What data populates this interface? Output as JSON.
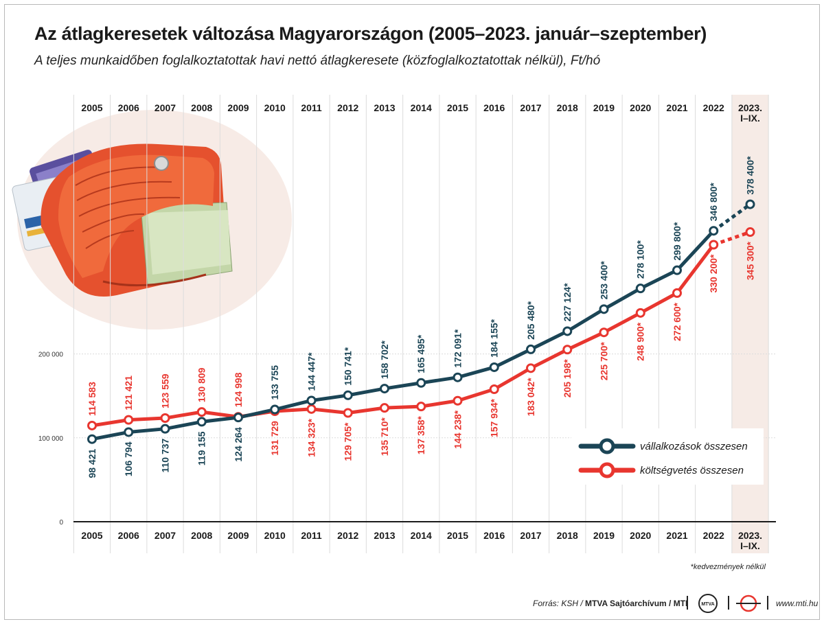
{
  "title": "Az átlagkeresetek változása Magyarországon (2005–2023. január–szeptember)",
  "subtitle": "A teljes munkaidőben foglalkoztatottak havi nettó átlagkeresete (közfoglalkoztatottak nélkül), Ft/hó",
  "footnote": "*kedvezmények nélkül",
  "footer": {
    "source_prefix": "Forrás: KSH / ",
    "source_bold": "MTVA Sajtóarchívum / MTI",
    "url": "www.mti.hu",
    "logo_text": "MTVA"
  },
  "colors": {
    "vallalkozasok": "#1b4556",
    "koltsegvetes": "#e8362f",
    "highlight_band": "#f6ebe6",
    "grid": "#dcdcdc"
  },
  "chart_data": {
    "type": "line",
    "title": "Az átlagkeresetek változása Magyarországon (2005–2023. január–szeptember)",
    "ylim": [
      0,
      400000
    ],
    "yticks": [
      {
        "value": 0,
        "label": "0"
      },
      {
        "value": 100000,
        "label": "100 000"
      },
      {
        "value": 200000,
        "label": "200 000"
      }
    ],
    "categories": [
      {
        "line1": "2005",
        "line2": ""
      },
      {
        "line1": "2006",
        "line2": ""
      },
      {
        "line1": "2007",
        "line2": ""
      },
      {
        "line1": "2008",
        "line2": ""
      },
      {
        "line1": "2009",
        "line2": ""
      },
      {
        "line1": "2010",
        "line2": ""
      },
      {
        "line1": "2011",
        "line2": ""
      },
      {
        "line1": "2012",
        "line2": ""
      },
      {
        "line1": "2013",
        "line2": ""
      },
      {
        "line1": "2014",
        "line2": ""
      },
      {
        "line1": "2015",
        "line2": ""
      },
      {
        "line1": "2016",
        "line2": ""
      },
      {
        "line1": "2017",
        "line2": ""
      },
      {
        "line1": "2018",
        "line2": ""
      },
      {
        "line1": "2019",
        "line2": ""
      },
      {
        "line1": "2020",
        "line2": ""
      },
      {
        "line1": "2021",
        "line2": ""
      },
      {
        "line1": "2022",
        "line2": ""
      },
      {
        "line1": "2023.",
        "line2": "I–IX."
      }
    ],
    "highlight_last_category": true,
    "dashed_last_segment": true,
    "grid": true,
    "legend_position": "bottom-right",
    "series": [
      {
        "name": "vállalkozások összesen",
        "key": "vallalkozasok",
        "values": [
          98421,
          106794,
          110737,
          119155,
          124264,
          133755,
          144447,
          150741,
          158702,
          165495,
          172091,
          184155,
          205480,
          227124,
          253400,
          278100,
          299800,
          346800,
          378400
        ],
        "labels": [
          "98 421",
          "106 794",
          "110 737",
          "119 155",
          "124 264",
          "133 755",
          "144 447*",
          "150 741*",
          "158 702*",
          "165 495*",
          "172 091*",
          "184 155*",
          "205 480*",
          "227 124*",
          "253 400*",
          "278 100*",
          "299 800*",
          "346 800*",
          "378 400*"
        ]
      },
      {
        "name": "költségvetés összesen",
        "key": "koltsegvetes",
        "values": [
          114583,
          121421,
          123559,
          130809,
          124998,
          131729,
          134323,
          129705,
          135710,
          137358,
          144238,
          157934,
          183042,
          205198,
          225700,
          248900,
          272600,
          330200,
          345300
        ],
        "labels": [
          "114 583",
          "121 421",
          "123 559",
          "130 809",
          "124 998",
          "131 729",
          "134 323*",
          "129 705*",
          "135 710*",
          "137 358*",
          "144 238*",
          "157 934*",
          "183 042*",
          "205 198*",
          "225 700*",
          "248 900*",
          "272 600*",
          "330 200*",
          "345 300*"
        ]
      }
    ]
  }
}
